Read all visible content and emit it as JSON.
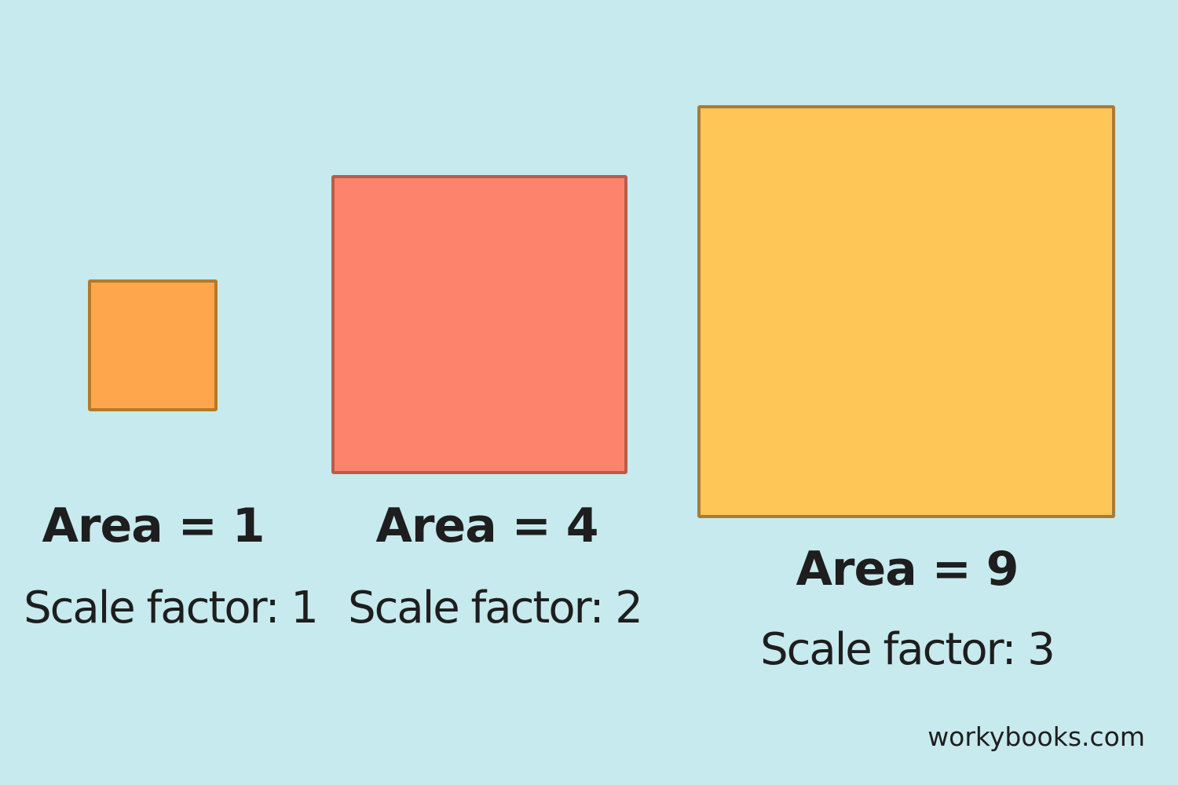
{
  "colors": {
    "background": "#c7eaee",
    "text": "#1e1e1e"
  },
  "squares": [
    {
      "area_label": "Area = 1",
      "scale_label": "Scale factor: 1",
      "fill": "#fea64b",
      "stroke": "#b47a2c"
    },
    {
      "area_label": "Area = 4",
      "scale_label": "Scale factor: 2",
      "fill": "#fe836c",
      "stroke": "#b85d4a"
    },
    {
      "area_label": "Area = 9",
      "scale_label": "Scale factor: 3",
      "fill": "#fec557",
      "stroke": "#a87a3a"
    }
  ],
  "watermark": "workybooks.com"
}
